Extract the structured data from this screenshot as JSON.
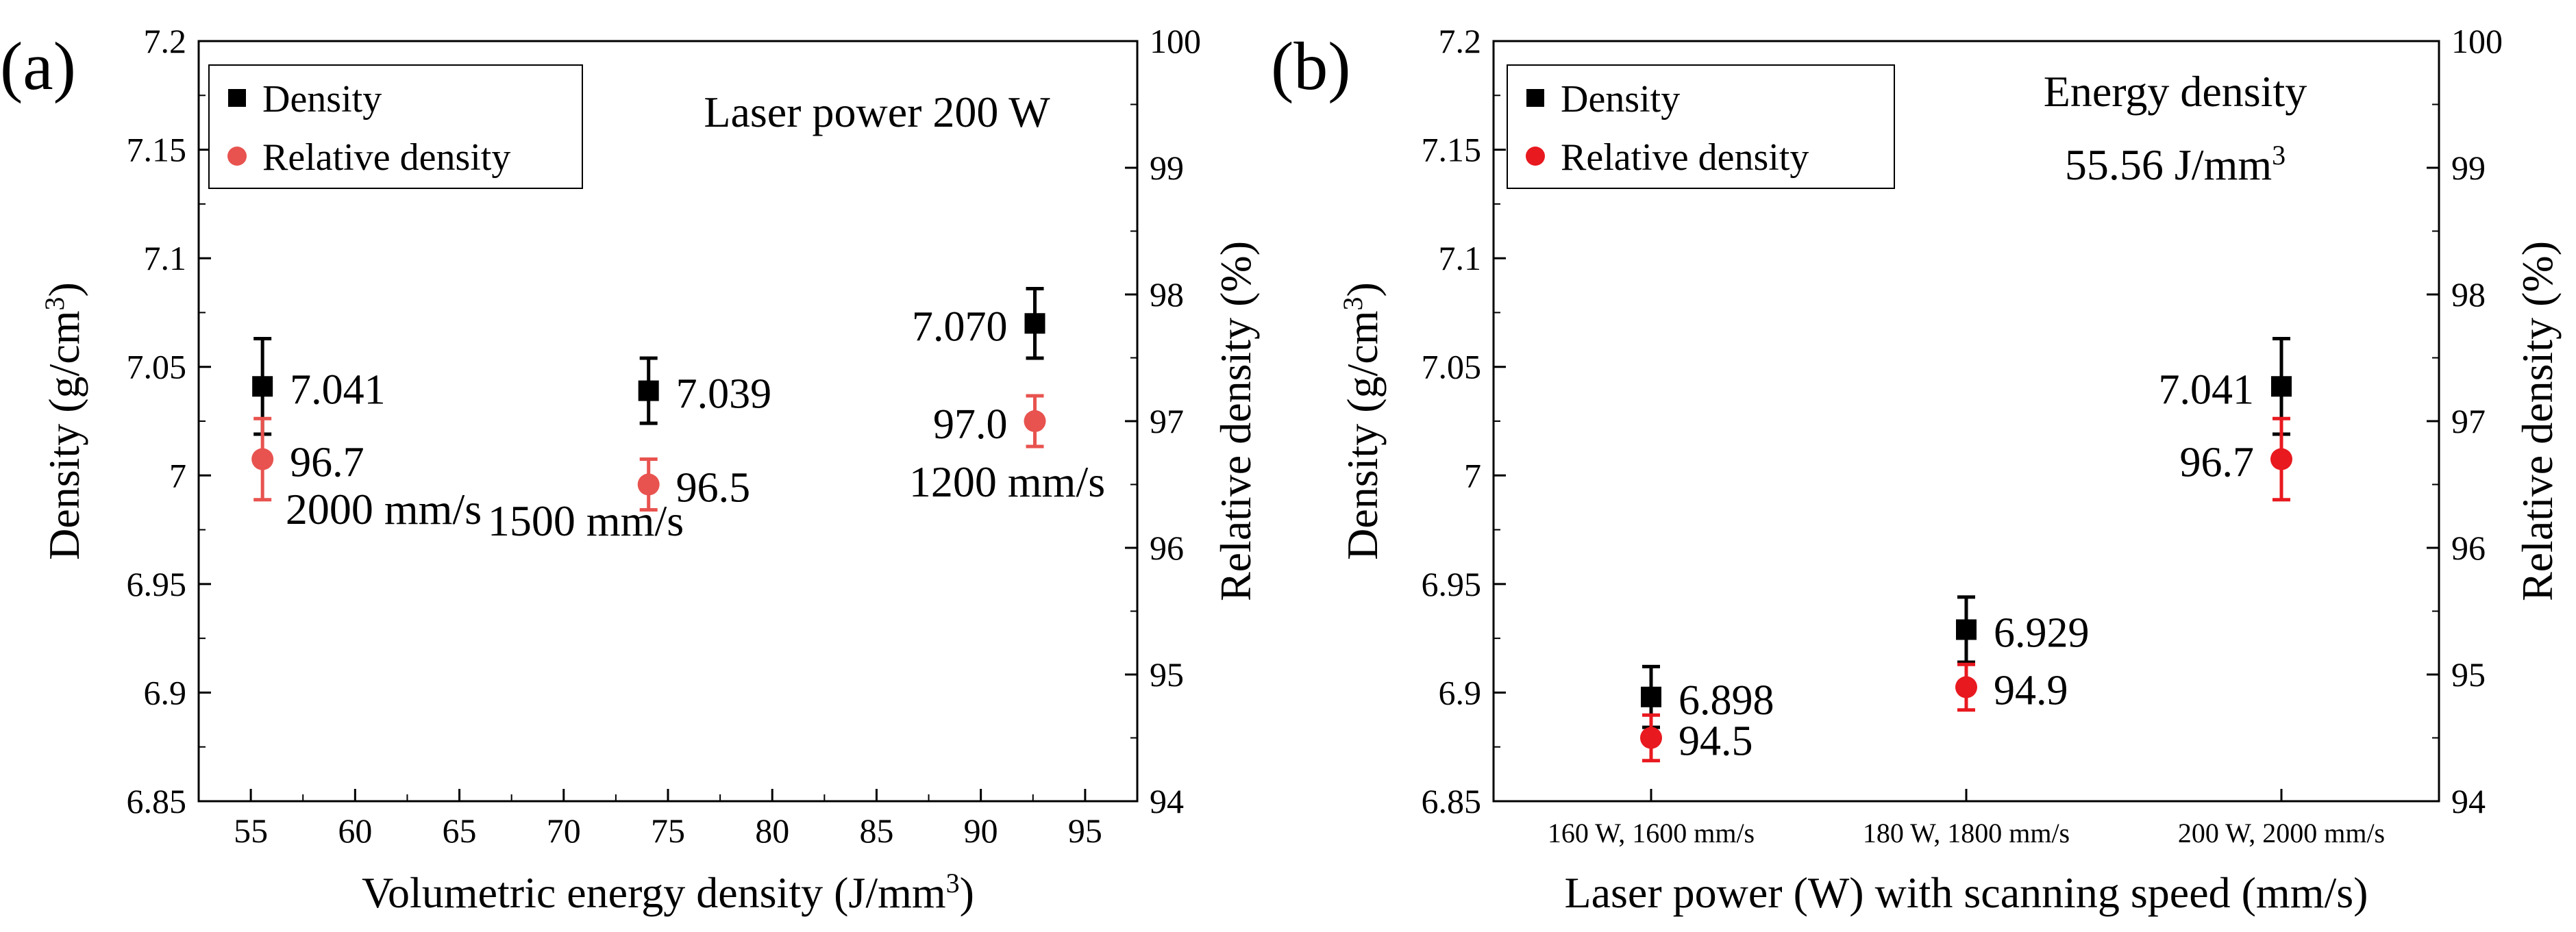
{
  "chart_data": [
    {
      "type": "scatter",
      "panel_label": "(a)",
      "xlabel": "Volumetric energy density (J/mm",
      "xlabel_sup": "3",
      "xlabel_tail": ")",
      "ylabel_left": "Density (g/cm",
      "ylabel_left_sup": "3",
      "ylabel_left_tail": ")",
      "ylabel_right": "Relative density (%)",
      "xlim": [
        52.5,
        97.5
      ],
      "ylim_left": [
        6.85,
        7.2
      ],
      "ylim_right": [
        94,
        100
      ],
      "xticks": [
        55,
        60,
        65,
        70,
        75,
        80,
        85,
        90,
        95
      ],
      "xtick_labels": [
        "55",
        "60",
        "65",
        "70",
        "75",
        "80",
        "85",
        "90",
        "95"
      ],
      "yticks_left": [
        6.85,
        6.9,
        6.95,
        7.0,
        7.05,
        7.1,
        7.15,
        7.2
      ],
      "ytick_labels_left": [
        "6.85",
        "6.9",
        "6.95",
        "7",
        "7.05",
        "7.1",
        "7.15",
        "7.2"
      ],
      "yticks_right": [
        94,
        95,
        96,
        97,
        98,
        99,
        100
      ],
      "ytick_labels_right": [
        "94",
        "95",
        "96",
        "97",
        "98",
        "99",
        "100"
      ],
      "legend": {
        "position": "top-left",
        "entries": [
          "Density",
          "Relative density"
        ]
      },
      "annotation": "Laser power 200 W",
      "series": [
        {
          "name": "Density",
          "axis": "left",
          "marker": "square",
          "color": "#000000",
          "x": [
            55.56,
            74.07,
            92.59
          ],
          "y": [
            7.041,
            7.039,
            7.07
          ],
          "err": [
            0.022,
            0.015,
            0.016
          ],
          "labels": [
            "7.041",
            "7.039",
            "7.070"
          ]
        },
        {
          "name": "Relative density",
          "axis": "right",
          "marker": "circle",
          "color": "#e8534f",
          "x": [
            55.56,
            74.07,
            92.59
          ],
          "y": [
            96.7,
            96.5,
            97.0
          ],
          "err": [
            0.32,
            0.2,
            0.2
          ],
          "labels": [
            "96.7",
            "96.5",
            "97.0"
          ]
        }
      ],
      "speed_labels": [
        "2000 mm/s",
        "1500 mm/s",
        "1200 mm/s"
      ]
    },
    {
      "type": "scatter",
      "panel_label": "(b)",
      "xlabel": "Laser power (W) with scanning speed (mm/s)",
      "ylabel_left": "Density (g/cm",
      "ylabel_left_sup": "3",
      "ylabel_left_tail": ")",
      "ylabel_right": "Relative density (%)",
      "categories": [
        "160 W, 1600 mm/s",
        "180 W, 1800 mm/s",
        "200 W, 2000 mm/s"
      ],
      "ylim_left": [
        6.85,
        7.2
      ],
      "ylim_right": [
        94,
        100
      ],
      "yticks_left": [
        6.85,
        6.9,
        6.95,
        7.0,
        7.05,
        7.1,
        7.15,
        7.2
      ],
      "ytick_labels_left": [
        "6.85",
        "6.9",
        "6.95",
        "7",
        "7.05",
        "7.1",
        "7.15",
        "7.2"
      ],
      "yticks_right": [
        94,
        95,
        96,
        97,
        98,
        99,
        100
      ],
      "ytick_labels_right": [
        "94",
        "95",
        "96",
        "97",
        "98",
        "99",
        "100"
      ],
      "legend": {
        "position": "top-left",
        "entries": [
          "Density",
          "Relative density"
        ]
      },
      "annotation_line1": "Energy density",
      "annotation_line2": "55.56 J/mm",
      "annotation_line2_sup": "3",
      "series": [
        {
          "name": "Density",
          "axis": "left",
          "marker": "square",
          "color": "#000000",
          "y": [
            6.898,
            6.929,
            7.041
          ],
          "err": [
            0.014,
            0.015,
            0.022
          ],
          "labels": [
            "6.898",
            "6.929",
            "7.041"
          ]
        },
        {
          "name": "Relative density",
          "axis": "right",
          "marker": "circle",
          "color": "#e8191f",
          "y": [
            94.5,
            94.9,
            96.7
          ],
          "err": [
            0.18,
            0.18,
            0.32
          ],
          "labels": [
            "94.5",
            "94.9",
            "96.7"
          ]
        }
      ]
    }
  ]
}
